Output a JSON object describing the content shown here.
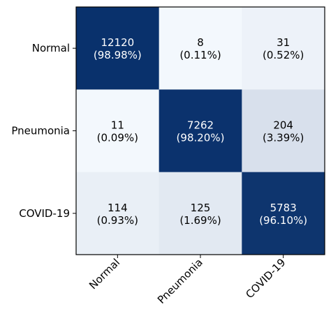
{
  "chart_data": {
    "type": "heatmap",
    "title": "",
    "xlabel": "",
    "ylabel": "",
    "x_categories": [
      "Normal",
      "Pneumonia",
      "COVID-19"
    ],
    "y_categories": [
      "Normal",
      "Pneumonia",
      "COVID-19"
    ],
    "values": [
      [
        12120,
        8,
        31
      ],
      [
        11,
        7262,
        204
      ],
      [
        114,
        125,
        5783
      ]
    ],
    "cell_labels": [
      [
        [
          "12120",
          "(98.98%)"
        ],
        [
          "8",
          "(0.11%)"
        ],
        [
          "31",
          "(0.52%)"
        ]
      ],
      [
        [
          "11",
          "(0.09%)"
        ],
        [
          "7262",
          "(98.20%)"
        ],
        [
          "204",
          "(3.39%)"
        ]
      ],
      [
        [
          "114",
          "(0.93%)"
        ],
        [
          "125",
          "(1.69%)"
        ],
        [
          "5783",
          "(96.10%)"
        ]
      ]
    ],
    "row_percent": [
      [
        98.98,
        0.11,
        0.52
      ],
      [
        0.09,
        98.2,
        3.39
      ],
      [
        0.93,
        1.69,
        96.1
      ]
    ],
    "colormap": {
      "low": "#f7fbff",
      "high": "#08306b"
    },
    "text_colors": {
      "dark_cell": "#ffffff",
      "light_cell": "#000000"
    },
    "x_tick_rotation": "45deg",
    "grid": false,
    "legend": "none"
  }
}
